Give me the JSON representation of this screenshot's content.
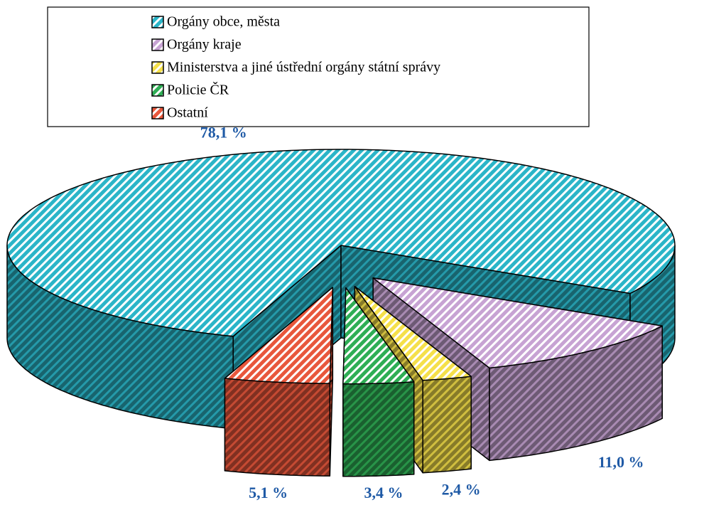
{
  "chart_data": {
    "type": "pie3d",
    "categories": [
      "Orgány obce, města",
      "Orgány kraje",
      "Ministerstva a jiné ústřední orgány státní správy",
      "Policie ČR",
      "Ostatní"
    ],
    "values": [
      78.1,
      11.0,
      2.4,
      3.4,
      5.1
    ],
    "value_labels": [
      "78,1 %",
      "11,0 %",
      "2,4 %",
      "3,4 %",
      "5,1 %"
    ],
    "colors": [
      "#2bb5c8",
      "#c7a3d3",
      "#f5e04a",
      "#2fae55",
      "#e8573c"
    ],
    "legend": "top"
  }
}
